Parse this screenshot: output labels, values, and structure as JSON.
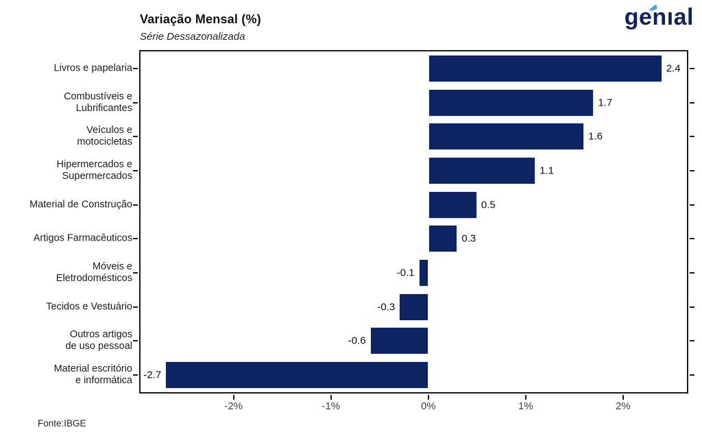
{
  "page": {
    "logo_text": "genıal",
    "source": "Fonte:IBGE"
  },
  "colors": {
    "bar": "#0E2462",
    "logo_navy": "#141F5E",
    "logo_accent": "#4BA1F7",
    "axis": "#1a1a1a",
    "tick_label": "#3d3d3d"
  },
  "chart_data": {
    "type": "bar",
    "orientation": "horizontal",
    "title": "Variação Mensal (%)",
    "subtitle": "Série Dessazonalizada",
    "categories": [
      "Livros e papelaria",
      "Combustíveis e\nLubrificantes",
      "Veículos e\nmotocicletas",
      "Hipermercados e\nSupermercados",
      "Material de Construção",
      "Artigos Farmacêuticos",
      "Móveis e\nEletrodomésticos",
      "Tecidos e Vestuário",
      "Outros artigos\nde uso pessoal",
      "Material escritório\ne informática"
    ],
    "values": [
      2.4,
      1.7,
      1.6,
      1.1,
      0.5,
      0.3,
      -0.1,
      -0.3,
      -0.6,
      -2.7
    ],
    "value_labels": [
      "2.4",
      "1.7",
      "1.6",
      "1.1",
      "0.5",
      "0.3",
      "-0.1",
      "-0.3",
      "-0.6",
      "-2.7"
    ],
    "x_tick_values": [
      -2,
      -1,
      0,
      1,
      2
    ],
    "x_tick_labels": [
      "-2%",
      "-1%",
      "0%",
      "1%",
      "2%"
    ],
    "xlim": [
      -2.955,
      2.655
    ],
    "xlabel": "",
    "ylabel": "",
    "grid": false,
    "legend": false,
    "panel_border": true,
    "source": "Fonte:IBGE"
  }
}
